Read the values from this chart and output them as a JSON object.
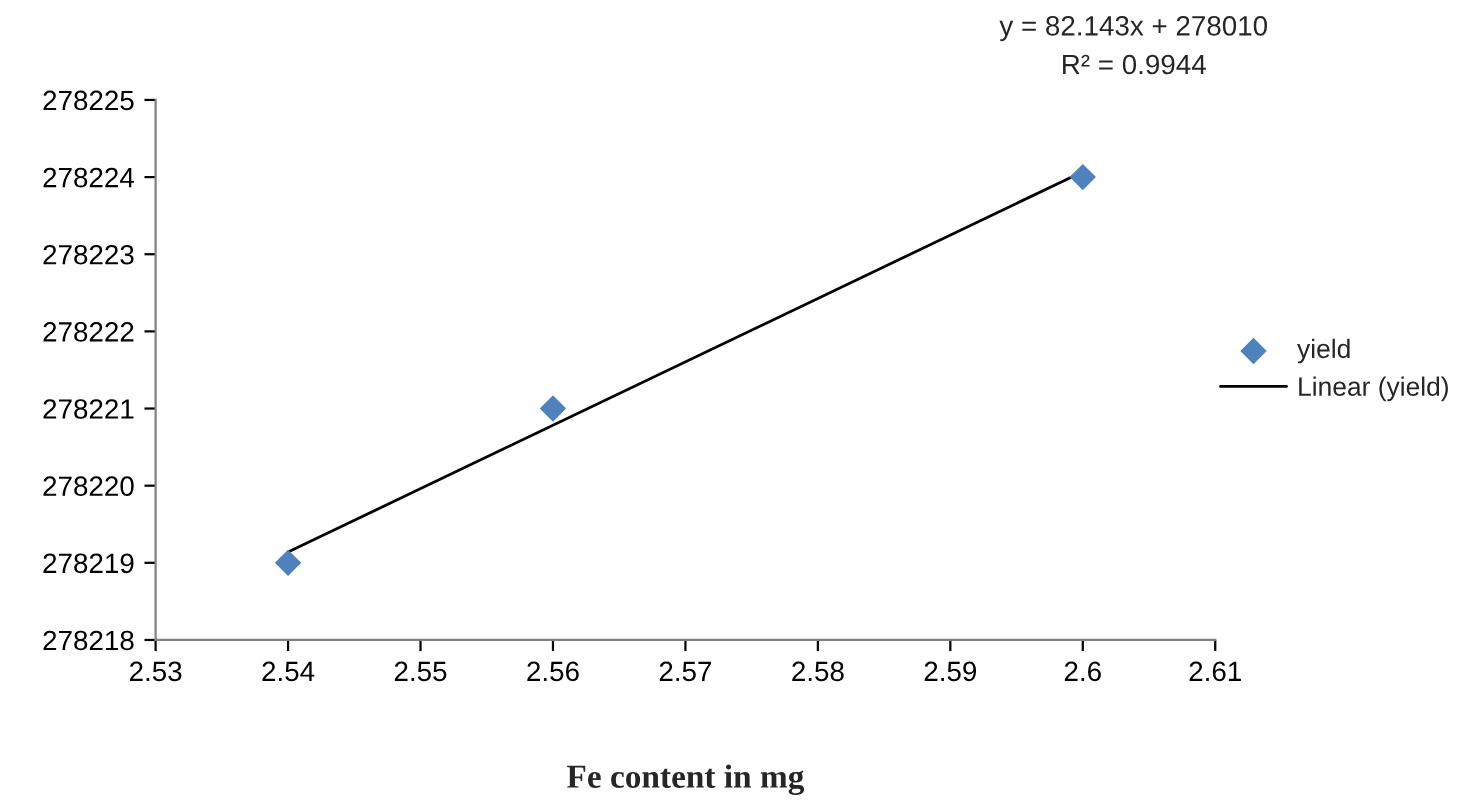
{
  "chart_data": {
    "type": "scatter",
    "xlabel": "Fe content in mg",
    "xlim": [
      2.53,
      2.61
    ],
    "xticks": [
      2.53,
      2.54,
      2.55,
      2.56,
      2.57,
      2.58,
      2.59,
      2.6,
      2.61
    ],
    "ylim": [
      278218,
      278225
    ],
    "yticks": [
      278218,
      278219,
      278220,
      278221,
      278222,
      278223,
      278224,
      278225
    ],
    "grid": false,
    "legend": "right",
    "annotations": [
      "y = 82.143x + 278010",
      "R² = 0.9944"
    ],
    "series": [
      {
        "name": "yield",
        "color": "#4f81bd",
        "marker": "diamond",
        "x": [
          2.54,
          2.56,
          2.6
        ],
        "values": [
          278219,
          278221,
          278224
        ]
      },
      {
        "name": "Linear (yield)",
        "type": "line",
        "color": "#000000",
        "line_style": "solid",
        "marker": "none",
        "x": [
          2.54,
          2.6
        ],
        "values": [
          278219.14,
          278224.07
        ]
      }
    ]
  }
}
